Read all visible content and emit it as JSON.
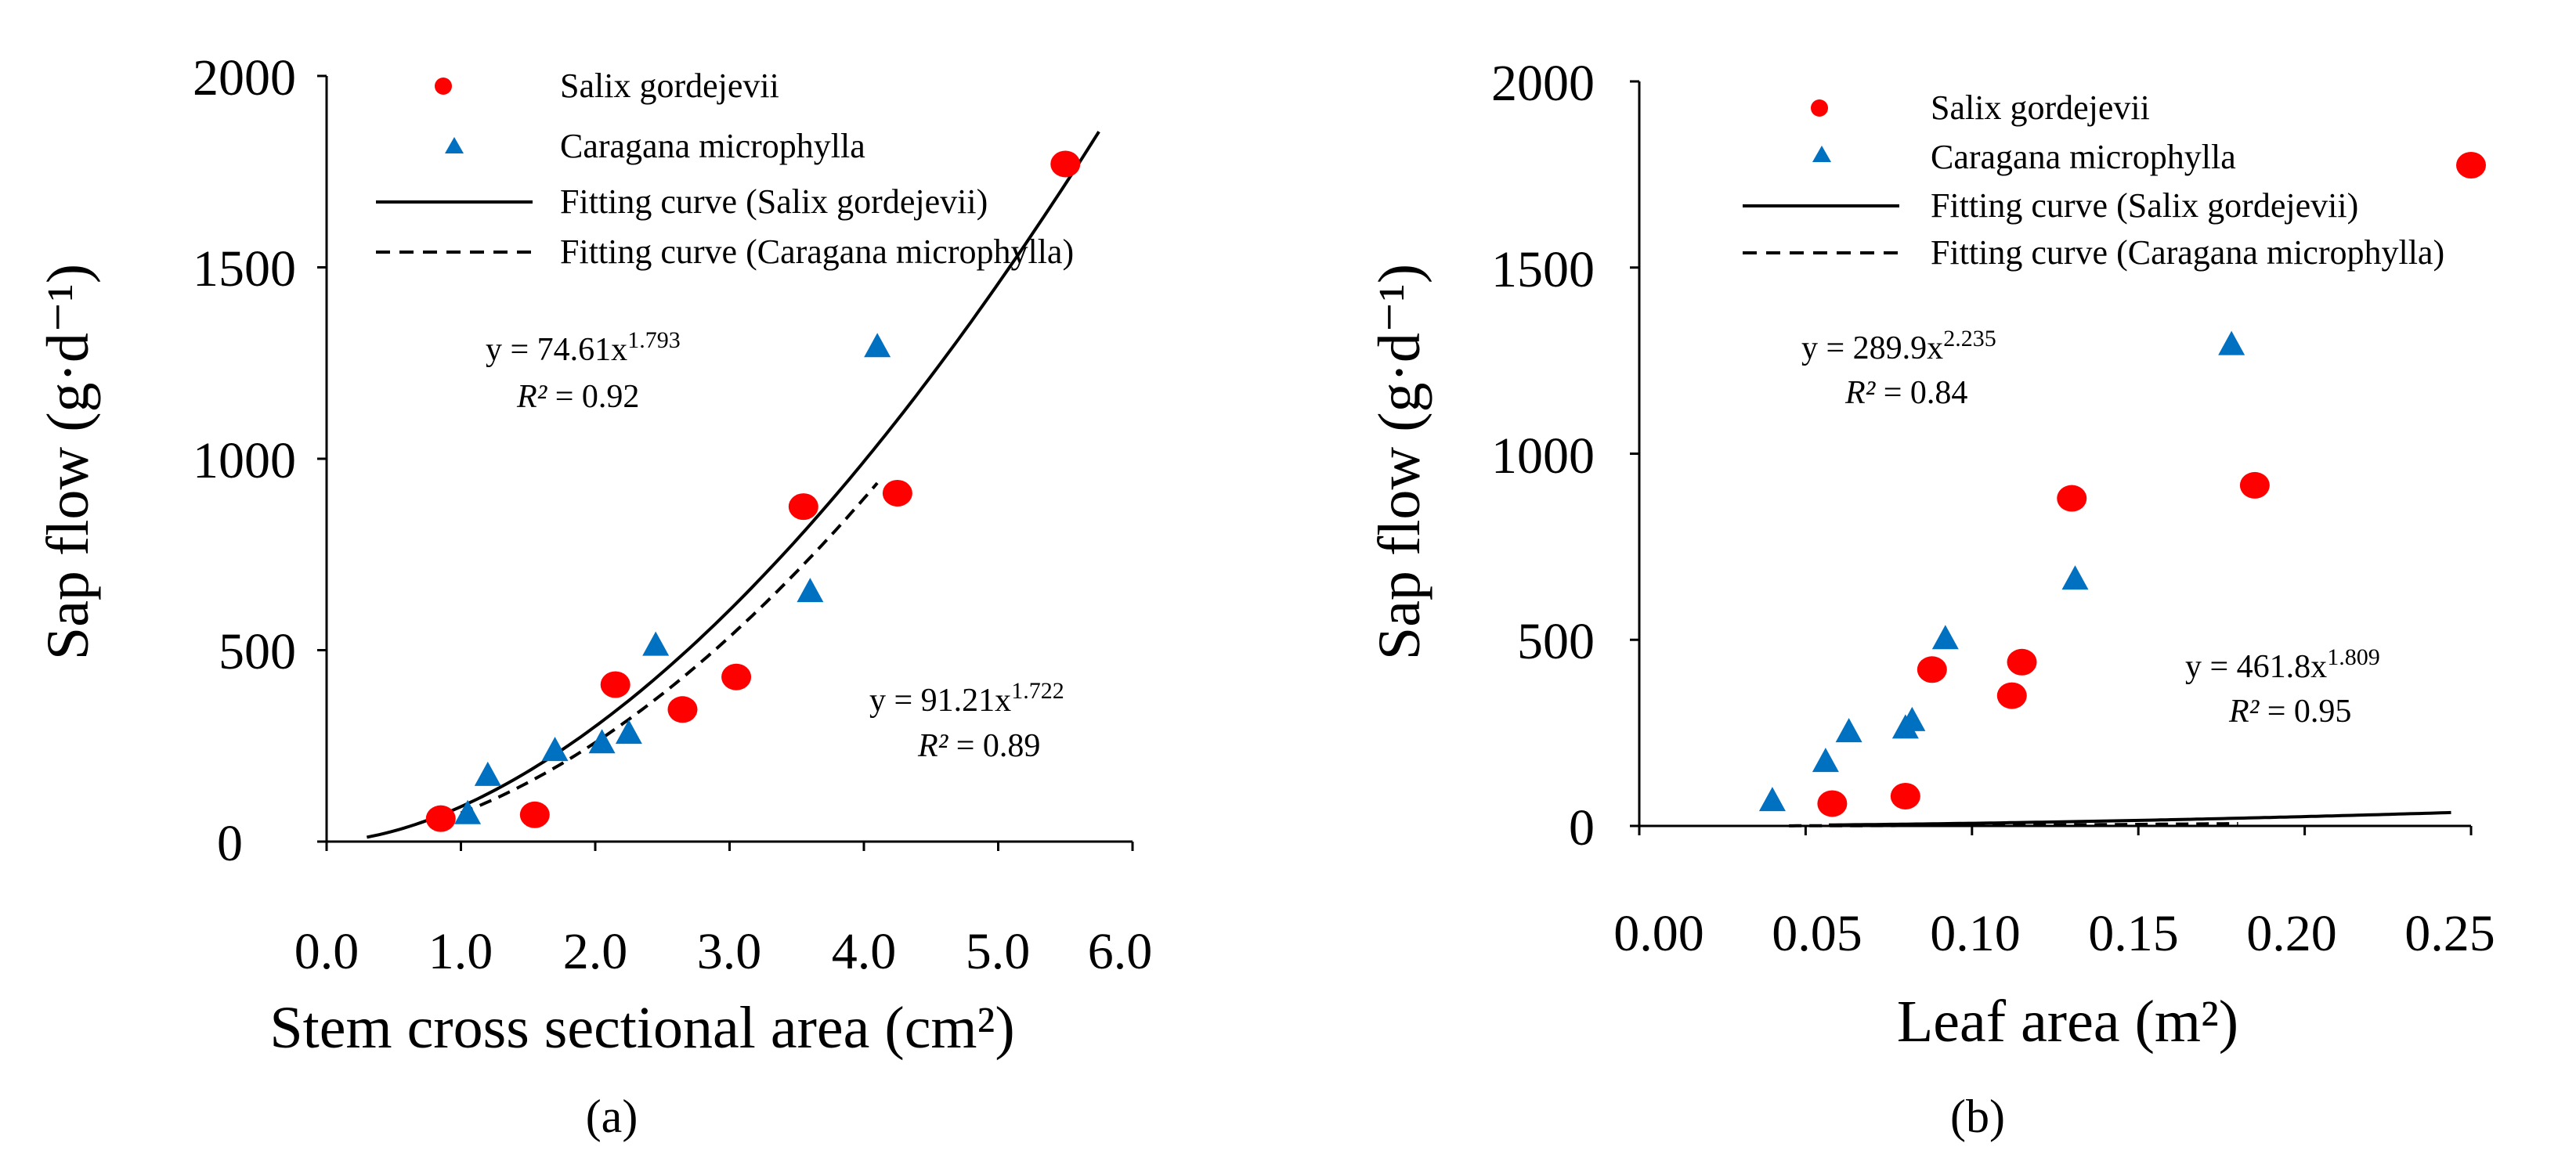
{
  "figure": {
    "panels": [
      "(a)",
      "(b)"
    ]
  },
  "chart_data": [
    {
      "type": "scatter",
      "panel_label": "(a)",
      "title": "",
      "xlabel": "Stem cross sectional area (cm²)",
      "ylabel": "Sap flow (g·d⁻¹)",
      "xlim": [
        0.0,
        6.0
      ],
      "ylim": [
        0,
        2000
      ],
      "xticks": [
        "0.0",
        "1.0",
        "2.0",
        "3.0",
        "4.0",
        "5.0",
        "6.0"
      ],
      "yticks": [
        "0",
        "500",
        "1000",
        "1500",
        "2000"
      ],
      "legend": [
        {
          "label": "Salix gordejevii",
          "marker": "circle"
        },
        {
          "label": "Caragana microphylla",
          "marker": "triangle"
        },
        {
          "label": "Fitting curve (Salix gordejevii)",
          "line": "solid"
        },
        {
          "label": "Fitting curve (Caragana microphylla)",
          "line": "dashed"
        }
      ],
      "series": [
        {
          "name": "Salix gordejevii",
          "marker": "circle",
          "color": "#ff0000",
          "x": [
            0.85,
            1.55,
            2.15,
            2.65,
            3.05,
            3.55,
            4.25,
            5.5
          ],
          "y": [
            60,
            70,
            410,
            345,
            430,
            875,
            910,
            1770
          ]
        },
        {
          "name": "Caragana microphylla",
          "marker": "triangle",
          "color": "#0070c0",
          "x": [
            1.05,
            1.2,
            1.7,
            2.05,
            2.25,
            2.45,
            3.6,
            4.1
          ],
          "y": [
            70,
            170,
            235,
            255,
            280,
            510,
            650,
            1290
          ]
        }
      ],
      "fits": [
        {
          "name": "Fitting curve (Salix gordejevii)",
          "style": "solid",
          "a": 91.21,
          "b": 1.722,
          "x_range": [
            0.3,
            5.75
          ]
        },
        {
          "name": "Fitting curve (Caragana microphylla)",
          "style": "dashed",
          "a": 74.61,
          "b": 1.793,
          "x_range": [
            1.0,
            4.1
          ]
        }
      ],
      "annotations": [
        {
          "equation": "y = 74.61x",
          "exponent": "1.793",
          "r2": "= 0.92",
          "series": "Caragana microphylla"
        },
        {
          "equation": "y = 91.21x",
          "exponent": "1.722",
          "r2": "= 0.89",
          "series": "Salix gordejevii"
        }
      ]
    },
    {
      "type": "scatter",
      "panel_label": "(b)",
      "title": "",
      "xlabel": "Leaf area (m²)",
      "ylabel": "Sap flow (g·d⁻¹)",
      "xlim": [
        0.0,
        0.25
      ],
      "ylim": [
        0,
        2000
      ],
      "xticks": [
        "0.00",
        "0.05",
        "0.10",
        "0.15",
        "0.20",
        "0.25"
      ],
      "yticks": [
        "0",
        "500",
        "1000",
        "1500",
        "2000"
      ],
      "legend": [
        {
          "label": "Salix gordejevii",
          "marker": "circle"
        },
        {
          "label": "Caragana microphylla",
          "marker": "triangle"
        },
        {
          "label": "Fitting curve (Salix gordejevii)",
          "line": "solid"
        },
        {
          "label": "Fitting curve (Caragana microphylla)",
          "line": "dashed"
        }
      ],
      "series": [
        {
          "name": "Salix gordejevii",
          "marker": "circle",
          "color": "#ff0000",
          "x": [
            0.058,
            0.08,
            0.088,
            0.112,
            0.115,
            0.13,
            0.185,
            0.25
          ],
          "y": [
            60,
            80,
            420,
            350,
            440,
            880,
            915,
            1775
          ]
        },
        {
          "name": "Caragana microphylla",
          "marker": "triangle",
          "color": "#0070c0",
          "x": [
            0.04,
            0.056,
            0.063,
            0.08,
            0.082,
            0.092,
            0.131,
            0.178
          ],
          "y": [
            65,
            170,
            250,
            260,
            280,
            500,
            660,
            1290
          ]
        }
      ],
      "fits": [
        {
          "name": "Fitting curve (Salix gordejevii)",
          "style": "solid",
          "a": 461.8,
          "b": 1.809,
          "x_range": [
            0.057,
            0.244
          ]
        },
        {
          "name": "Fitting curve (Caragana microphylla)",
          "style": "dashed",
          "a": 289.9,
          "b": 2.235,
          "x_range": [
            0.045,
            0.18
          ]
        }
      ],
      "annotations": [
        {
          "equation": "y = 289.9x",
          "exponent": "2.235",
          "r2": "= 0.84",
          "series": "Caragana microphylla"
        },
        {
          "equation": "y = 461.8x",
          "exponent": "1.809",
          "r2": "= 0.95",
          "series": "Salix gordejevii"
        }
      ]
    }
  ]
}
